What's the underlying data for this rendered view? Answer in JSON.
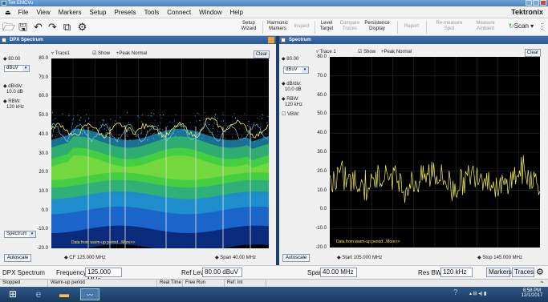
{
  "app": {
    "title": "Tek EMCVu",
    "brand": "Tektronix"
  },
  "menu": [
    "File",
    "View",
    "Markers",
    "Setup",
    "Presets",
    "Tools",
    "Connect",
    "Window",
    "Help"
  ],
  "toolbar": {
    "setup_wizard": [
      "Setup",
      "Wizard"
    ],
    "harmonic_markers": [
      "Harmonic",
      "Markers"
    ],
    "inspect": "Inspect",
    "level_target": [
      "Level",
      "Target"
    ],
    "compare_traces": [
      "Compare",
      "Traces"
    ],
    "persistence_display": [
      "Persistence",
      "Display"
    ],
    "report": "Report",
    "remeasure_spot": [
      "Re-measure",
      "Spot"
    ],
    "measure_ambient": [
      "Measure",
      "Ambient"
    ],
    "scan": "Scan"
  },
  "left_panel": {
    "title": "DPX Spectrum",
    "ref_value": "80.00",
    "unit": "dBuV",
    "db_div_label": "dB/div:",
    "db_div_value": "10.0 dB",
    "rbw_label": "RBW:",
    "rbw_value": "120 kHz",
    "trace": "Trace1",
    "show": "Show",
    "detector": "+Peak Normal",
    "clear": "Clear",
    "y_ticks": [
      "80.0",
      "70.0",
      "60.0",
      "50.0",
      "40.0",
      "30.0",
      "20.0",
      "10.0",
      "0.0",
      "-10.0",
      "-20.0"
    ],
    "warmup": "Data from warm-up period...More>>",
    "spectrum_select": "Spectrum",
    "autoscale": "Autoscale",
    "cf_label": "CF",
    "cf_value": "125.000 MHz",
    "span_label": "Span",
    "span_value": "40.00 MHz"
  },
  "right_panel": {
    "title": "Spectrum",
    "ref_value": "80.00",
    "unit": "dBuV",
    "db_div_label": "dB/div:",
    "db_div_value": "10.0 dB",
    "rbw_label": "RBW:",
    "rbw_value": "120 kHz",
    "vbw_label": "VBW:",
    "trace": "Trace 1",
    "show": "Show",
    "detector": "+Peak Normal",
    "clear": "Clear",
    "y_ticks": [
      "80.0",
      "70.0",
      "60.0",
      "50.0",
      "40.0",
      "30.0",
      "20.0",
      "10.0",
      "0.0",
      "-10.0",
      "-20.0"
    ],
    "warmup": "Data from warm-up period...More>>",
    "autoscale": "Autoscale",
    "start_label": "Start",
    "start_value": "105.000 MHz",
    "stop_label": "Stop",
    "stop_value": "145.000 MHz"
  },
  "bottom": {
    "mode": "DPX Spectrum",
    "frequency_label": "Frequency",
    "frequency_value": "125.000 MHz",
    "reflev_label": "Ref Lev",
    "reflev_value": "80.00 dBuV",
    "span_label": "Span",
    "span_value": "40.00 MHz",
    "resbw_label": "Res BW",
    "resbw_value": "120 kHz",
    "markers_btn": "Markers",
    "traces_btn": "Traces"
  },
  "status": {
    "state": "Stopped",
    "msg": "Warm-up period",
    "realtime": "Real Time",
    "freerun": "Free Run",
    "ref": "Ref: Int"
  },
  "taskbar": {
    "time": "6:58 PM",
    "date": "12/1/2017"
  },
  "colors": {
    "trace": "#f2f05a",
    "dpx_high": "#49d23c",
    "dpx_low": "#1f6fd8",
    "panel_title": "#2c5995"
  }
}
